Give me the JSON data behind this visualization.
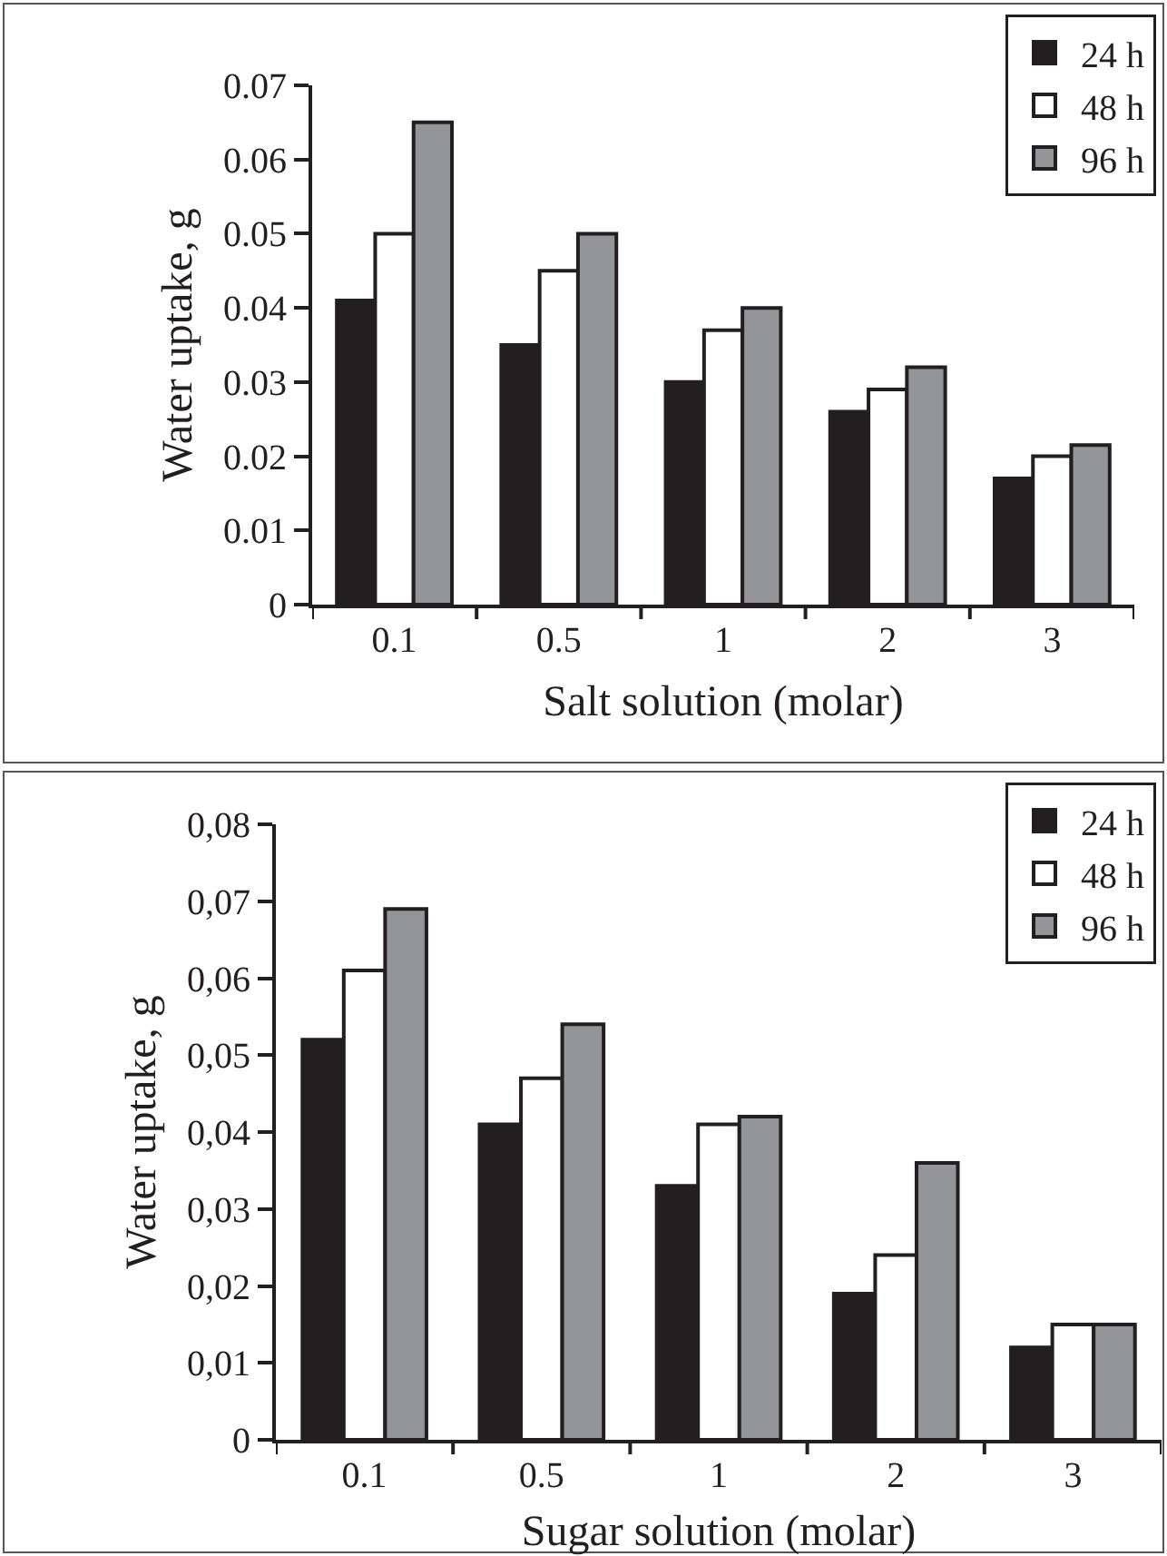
{
  "chart_data": [
    {
      "type": "bar",
      "categories": [
        "0.1",
        "0.5",
        "1",
        "2",
        "3"
      ],
      "xlabel": "Salt solution (molar)",
      "ylabel": "Water uptake, g",
      "ylim": [
        0,
        0.07
      ],
      "yticks": [
        0,
        0.01,
        0.02,
        0.03,
        0.04,
        0.05,
        0.06,
        0.07
      ],
      "legend": "top right",
      "series": [
        {
          "name": "24 h",
          "color": "#231f20",
          "values": [
            0.041,
            0.035,
            0.03,
            0.026,
            0.017
          ]
        },
        {
          "name": "48 h",
          "color": "#ffffff",
          "values": [
            0.05,
            0.045,
            0.037,
            0.029,
            0.02
          ]
        },
        {
          "name": "96 h",
          "color": "#939598",
          "values": [
            0.065,
            0.05,
            0.04,
            0.032,
            0.0215
          ]
        }
      ]
    },
    {
      "type": "bar",
      "categories": [
        "0.1",
        "0.5",
        "1",
        "2",
        "3"
      ],
      "xlabel": "Sugar solution (molar)",
      "ylabel": "Water uptake, g",
      "ylim": [
        0,
        0.08
      ],
      "yticks": [
        {
          "value": 0,
          "label": "0"
        },
        {
          "value": 0.01,
          "label": "0,01"
        },
        {
          "value": 0.02,
          "label": "0,02"
        },
        {
          "value": 0.03,
          "label": "0,03"
        },
        {
          "value": 0.04,
          "label": "0,04"
        },
        {
          "value": 0.05,
          "label": "0,05"
        },
        {
          "value": 0.06,
          "label": "0,06"
        },
        {
          "value": 0.07,
          "label": "0,07"
        },
        {
          "value": 0.08,
          "label": "0,08"
        }
      ],
      "legend": "top right",
      "series": [
        {
          "name": "24 h",
          "color": "#231f20",
          "values": [
            0.052,
            0.041,
            0.033,
            0.019,
            0.012
          ]
        },
        {
          "name": "48 h",
          "color": "#ffffff",
          "values": [
            0.061,
            0.047,
            0.041,
            0.024,
            0.015
          ]
        },
        {
          "name": "96 h",
          "color": "#939598",
          "values": [
            0.069,
            0.054,
            0.042,
            0.036,
            0.015
          ]
        }
      ]
    }
  ]
}
